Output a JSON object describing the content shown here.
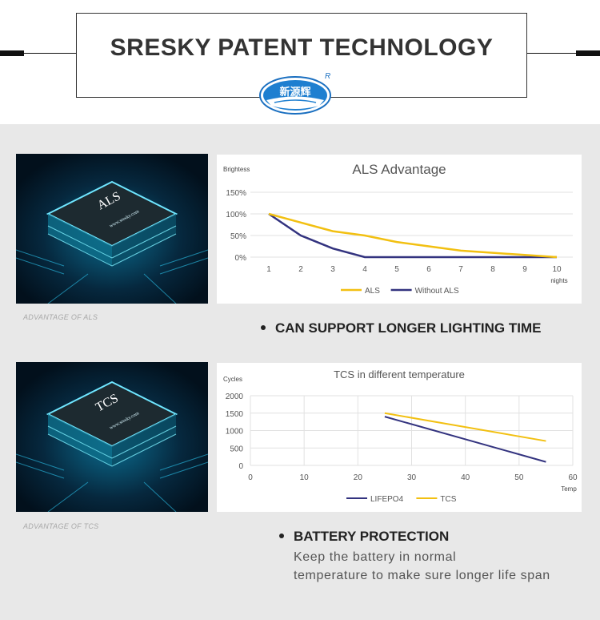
{
  "header": {
    "title": "SRESKY PATENT TECHNOLOGY",
    "logo_text": "新源辉",
    "logo_mark": "R"
  },
  "section1": {
    "chip_label": "ALS",
    "chip_url": "www.sresky.com",
    "caption": "ADVANTAGE OF ALS",
    "bullet": "CAN SUPPORT LONGER LIGHTING TIME"
  },
  "section2": {
    "chip_label": "TCS",
    "chip_url": "www.sresky.com",
    "caption": "ADVANTAGE OF TCS",
    "bullet": "BATTERY PROTECTION",
    "desc_line1": "Keep the battery in normal",
    "desc_line2": "temperature to make sure longer life span"
  },
  "colors": {
    "yellow": "#f2c012",
    "navy": "#33337f",
    "grid": "#e1e1e1"
  },
  "chart_data": [
    {
      "type": "line",
      "title": "ALS Advantage",
      "ylabel": "Brightess",
      "xlabel": "nights",
      "x": [
        1,
        2,
        3,
        4,
        5,
        6,
        7,
        8,
        9,
        10
      ],
      "y_ticks": [
        "0%",
        "50%",
        "100%",
        "150%"
      ],
      "ylim": [
        0,
        150
      ],
      "series": [
        {
          "name": "ALS",
          "color": "#f2c012",
          "values": [
            100,
            80,
            60,
            50,
            35,
            25,
            15,
            10,
            5,
            0
          ]
        },
        {
          "name": "Without ALS",
          "color": "#33337f",
          "values": [
            100,
            50,
            20,
            0,
            0,
            0,
            0,
            0,
            0,
            0
          ]
        }
      ],
      "legend": "bottom",
      "grid": true
    },
    {
      "type": "line",
      "title": "TCS in different temperature",
      "ylabel": "Cycles",
      "xlabel": "Temp",
      "y_ticks": [
        "0",
        "500",
        "1000",
        "1500",
        "2000"
      ],
      "x_ticks": [
        "0",
        "10",
        "20",
        "30",
        "40",
        "50",
        "60"
      ],
      "xlim": [
        0,
        60
      ],
      "ylim": [
        0,
        2000
      ],
      "series": [
        {
          "name": "LIFEPO4",
          "color": "#33337f",
          "x": [
            25,
            55
          ],
          "values": [
            1400,
            100
          ]
        },
        {
          "name": "TCS",
          "color": "#f2c012",
          "x": [
            25,
            55
          ],
          "values": [
            1500,
            700
          ]
        }
      ],
      "legend": "bottom",
      "grid": true
    }
  ]
}
